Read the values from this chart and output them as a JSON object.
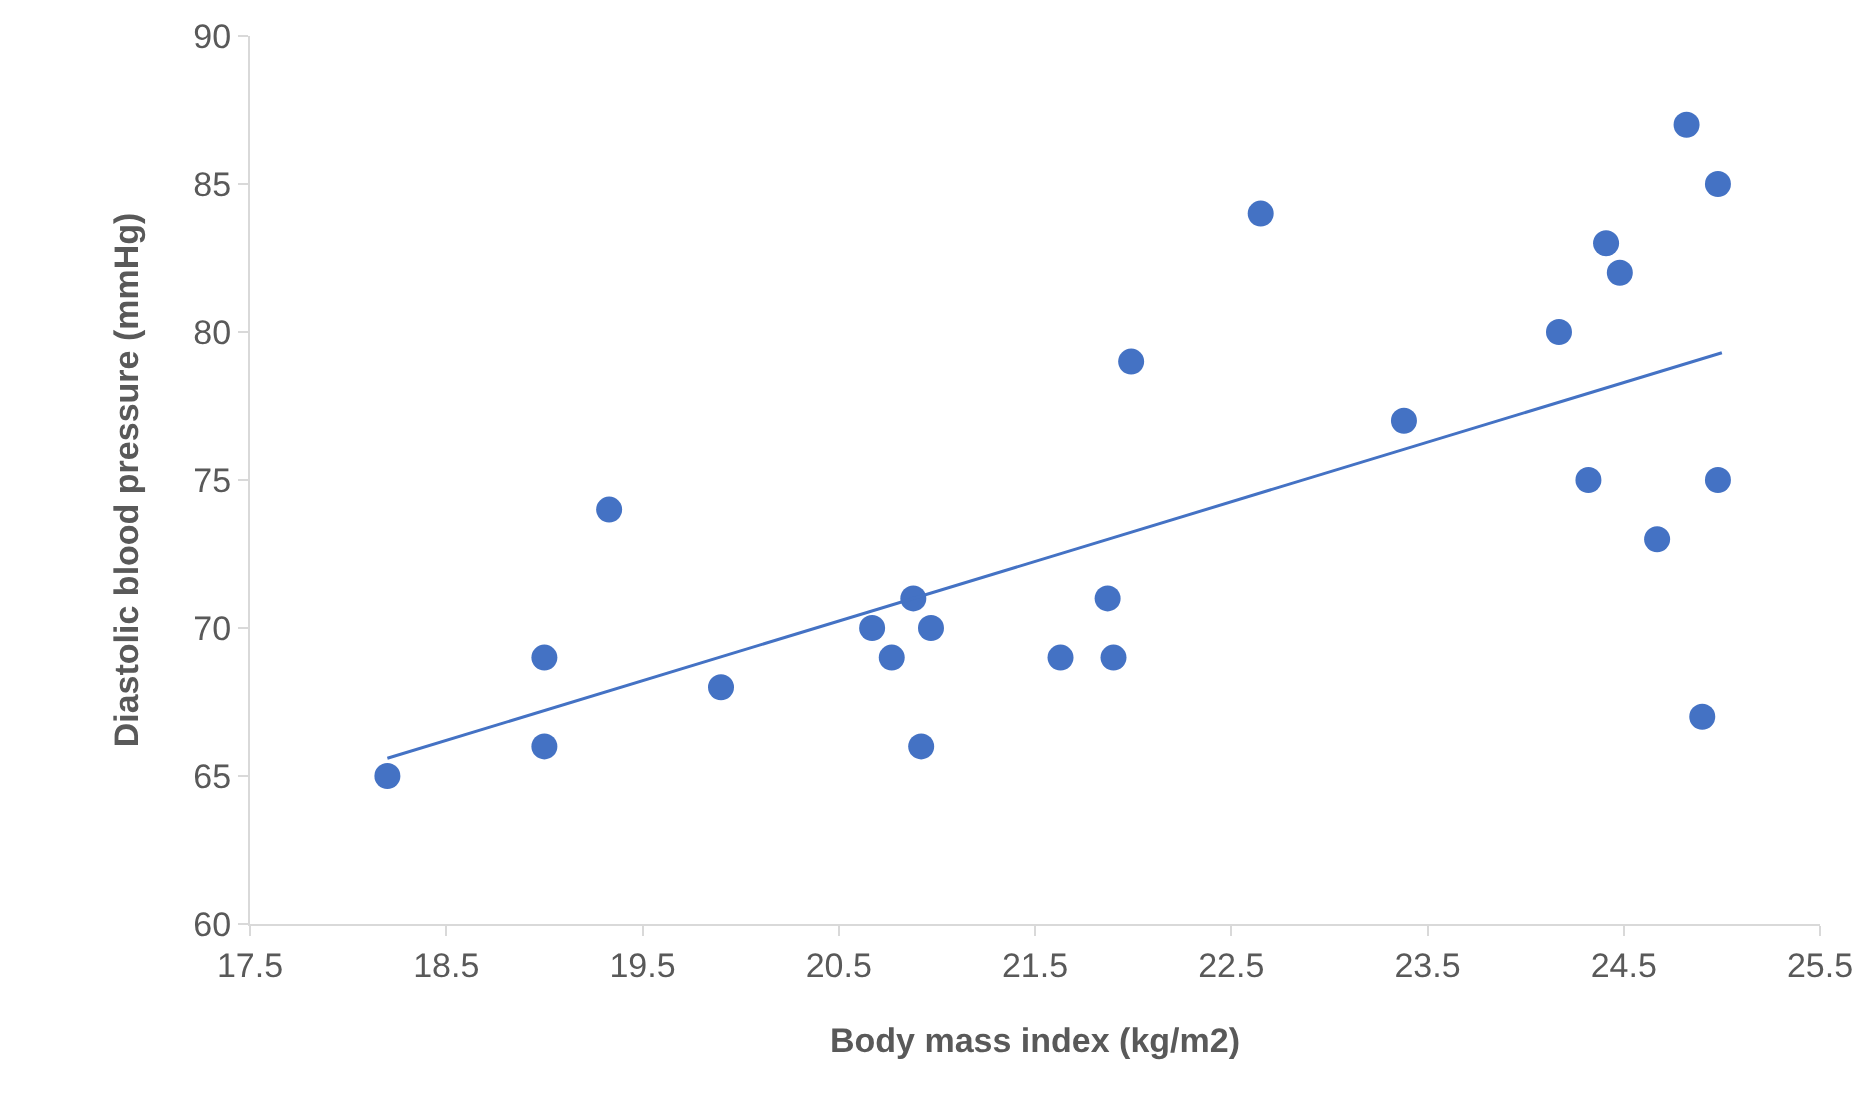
{
  "chart_data": {
    "type": "scatter",
    "xlabel": "Body mass index (kg/m2)",
    "ylabel": "Diastolic blood pressure (mmHg)",
    "xlim": [
      17.5,
      25.5
    ],
    "xticks": [
      17.5,
      18.5,
      19.5,
      20.5,
      21.5,
      22.5,
      23.5,
      24.5,
      25.5
    ],
    "ylim": [
      60,
      90
    ],
    "yticks": [
      60,
      65,
      70,
      75,
      80,
      85,
      90
    ],
    "grid": false,
    "marker": "circle",
    "series": [
      {
        "color": "#4472c4",
        "x": [
          18.2,
          19.0,
          19.0,
          19.33,
          19.9,
          20.67,
          20.77,
          20.88,
          20.92,
          20.97,
          21.63,
          21.87,
          21.9,
          21.99,
          22.65,
          23.38,
          24.17,
          24.32,
          24.41,
          24.48,
          24.67,
          24.82,
          24.9,
          24.98,
          24.98
        ],
        "values": [
          65,
          69,
          66,
          74,
          68,
          70,
          69,
          71,
          66,
          70,
          69,
          71,
          69,
          79,
          84,
          77,
          80,
          75,
          83,
          82,
          73,
          87,
          67,
          85,
          75
        ]
      },
      {
        "type": "line",
        "color": "#4472c4",
        "marker": "none",
        "x": [
          18.2,
          25.0
        ],
        "values": [
          65.6,
          79.3
        ]
      }
    ]
  }
}
